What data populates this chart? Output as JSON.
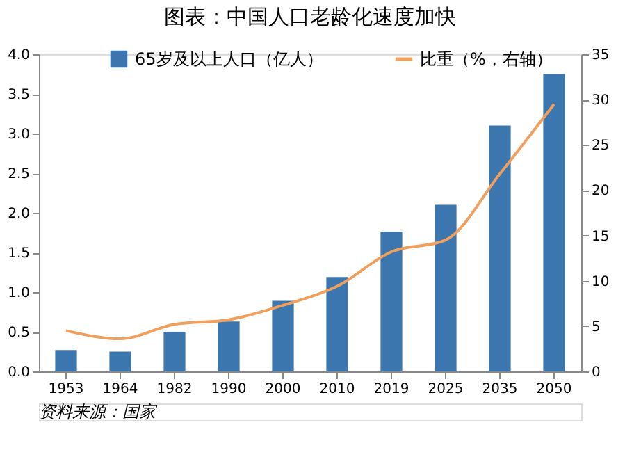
{
  "chart_data": {
    "type": "bar",
    "title": "图表：中国人口老龄化速度加快",
    "categories": [
      "1953",
      "1964",
      "1982",
      "1990",
      "2000",
      "2010",
      "2019",
      "2025",
      "2035",
      "2050"
    ],
    "series": [
      {
        "name": "65岁及以上人口（亿人）",
        "color": "#3b76ae",
        "values": [
          0.27,
          0.25,
          0.5,
          0.63,
          0.89,
          1.19,
          1.76,
          2.1,
          3.1,
          3.75
        ]
      },
      {
        "name": "比重（%，右轴）",
        "type": "line",
        "axis": "y2",
        "color": "#f0a05c",
        "values": [
          4.5,
          3.6,
          5.2,
          5.7,
          7.3,
          9.4,
          13.2,
          14.5,
          21.8,
          29.5
        ]
      }
    ],
    "ylim": [
      0,
      4
    ],
    "yticks": [
      {
        "value": 0,
        "label": "0.0"
      },
      0.5,
      {
        "value": 1,
        "label": "1.0"
      },
      1.5,
      {
        "value": 2,
        "label": "2.0"
      },
      2.5,
      {
        "value": 3,
        "label": "3.0"
      },
      3.5,
      {
        "value": 4,
        "label": "4.0"
      }
    ],
    "y2lim": [
      0,
      35
    ],
    "y2ticks": [
      0,
      5,
      10,
      15,
      20,
      25,
      30,
      35
    ],
    "grid": false,
    "legend": "top",
    "annotations": [
      "资料来源：国家"
    ]
  }
}
